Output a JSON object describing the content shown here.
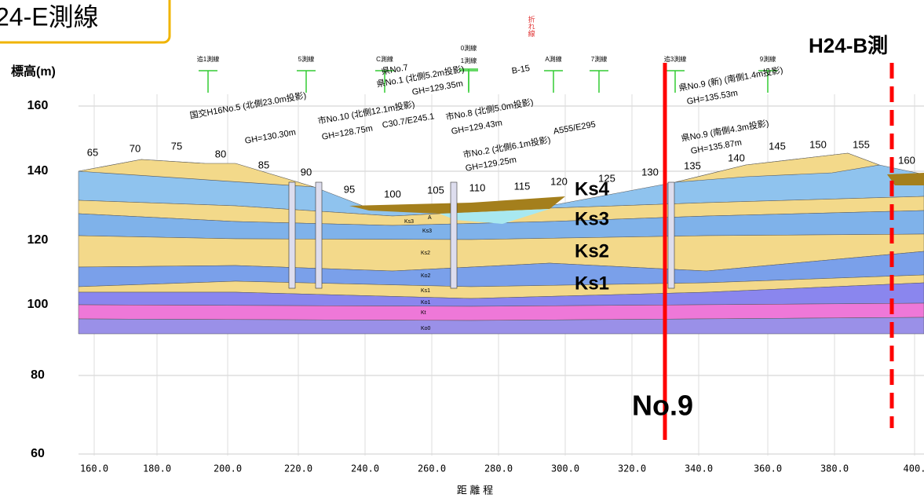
{
  "title": "24-E測線",
  "right_label": "H24-B測",
  "y_axis_label": "標高(m)",
  "yticks": [
    "160",
    "140",
    "120",
    "100",
    "80",
    "60"
  ],
  "xticks": [
    "160.0",
    "180.0",
    "200.0",
    "220.0",
    "240.0",
    "260.0",
    "280.0",
    "300.0",
    "320.0",
    "340.0",
    "360.0",
    "380.0",
    "400."
  ],
  "x_axis_label": "距 離 程",
  "layers": [
    "Ks4",
    "Ks3",
    "Ks2",
    "Ks1"
  ],
  "line_label": "No.9",
  "bend_label": "折れ線",
  "stations": [
    "65",
    "70",
    "75",
    "80",
    "85",
    "90",
    "95",
    "100",
    "105",
    "110",
    "115",
    "120",
    "125",
    "130",
    "135",
    "140",
    "145",
    "150",
    "155",
    "160"
  ],
  "survey_lines": [
    "追1測線",
    "5測線",
    "C測線",
    "0測線",
    "1測線",
    "A測線",
    "7測線",
    "追3測線",
    "9測線"
  ],
  "boreholes": [
    "国交H16No.5 (北側23.0m投影)",
    "GH=130.30m",
    "市No.10 (北側12.1m投影)",
    "GH=128.75m",
    "C30.7/E245.1",
    "県No.1 (北側5.2m投影)",
    "GH=129.35m",
    "県No.7",
    "B-15",
    "市No.8 (北側5.0m投影)",
    "GH=129.43m",
    "市No.2 (北側6.1m投影)",
    "GH=129.25m",
    "A555/E295",
    "県No.9 (新) (南側1.4m投影)",
    "GH=135.53m",
    "県No.9 (南側4.3m投影)",
    "GH=135.87m"
  ],
  "small_layer_labels": [
    "Ks3",
    "A",
    "Ks3",
    "Ks2",
    "Ko2",
    "Ks1",
    "Ko1",
    "Kt",
    "Ko0"
  ]
}
